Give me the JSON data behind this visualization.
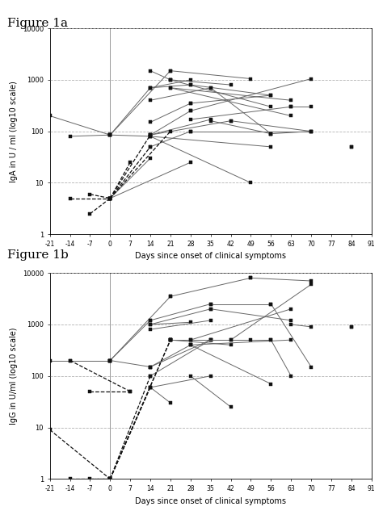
{
  "fig1a_title": "Figure 1a",
  "fig1b_title": "Figure 1b",
  "xlabel": "Days since onset of clinical symptoms",
  "ylabel_a": "IgA in U / ml (log10 scale)",
  "ylabel_b": "IgG in U/ml (log10 scale)",
  "xlim": [
    -21,
    91
  ],
  "ylim_log": [
    1,
    10000
  ],
  "xticks": [
    -21,
    -14,
    -7,
    0,
    7,
    14,
    21,
    28,
    35,
    42,
    49,
    56,
    63,
    70,
    77,
    84,
    91
  ],
  "yticks_log": [
    1,
    10,
    100,
    1000,
    10000
  ],
  "fig1a_solid_lines": [
    [
      [
        -21,
        200
      ],
      [
        0,
        85
      ]
    ],
    [
      [
        -14,
        80
      ],
      [
        0,
        85
      ]
    ],
    [
      [
        0,
        85
      ],
      [
        21,
        1500
      ]
    ],
    [
      [
        0,
        85
      ],
      [
        14,
        700
      ]
    ],
    [
      [
        0,
        85
      ],
      [
        14,
        80
      ]
    ],
    [
      [
        0,
        5
      ],
      [
        14,
        30
      ]
    ],
    [
      [
        0,
        5
      ],
      [
        28,
        25
      ]
    ],
    [
      [
        14,
        1500
      ],
      [
        21,
        1000
      ]
    ],
    [
      [
        14,
        700
      ],
      [
        28,
        1000
      ]
    ],
    [
      [
        14,
        700
      ],
      [
        28,
        800
      ]
    ],
    [
      [
        14,
        400
      ],
      [
        35,
        700
      ]
    ],
    [
      [
        14,
        150
      ],
      [
        28,
        350
      ]
    ],
    [
      [
        14,
        85
      ],
      [
        28,
        250
      ]
    ],
    [
      [
        14,
        85
      ],
      [
        35,
        170
      ]
    ],
    [
      [
        14,
        85
      ],
      [
        42,
        160
      ]
    ],
    [
      [
        14,
        80
      ],
      [
        49,
        10
      ]
    ],
    [
      [
        14,
        80
      ],
      [
        56,
        50
      ]
    ],
    [
      [
        14,
        50
      ],
      [
        28,
        100
      ]
    ],
    [
      [
        21,
        1500
      ],
      [
        49,
        1050
      ]
    ],
    [
      [
        21,
        1000
      ],
      [
        42,
        800
      ]
    ],
    [
      [
        21,
        1000
      ],
      [
        56,
        300
      ]
    ],
    [
      [
        21,
        700
      ],
      [
        63,
        400
      ]
    ],
    [
      [
        21,
        700
      ],
      [
        63,
        200
      ]
    ],
    [
      [
        28,
        800
      ],
      [
        56,
        500
      ]
    ],
    [
      [
        28,
        350
      ],
      [
        56,
        500
      ]
    ],
    [
      [
        28,
        250
      ],
      [
        70,
        1050
      ]
    ],
    [
      [
        28,
        170
      ],
      [
        63,
        300
      ]
    ],
    [
      [
        28,
        100
      ],
      [
        70,
        100
      ]
    ],
    [
      [
        35,
        700
      ],
      [
        56,
        90
      ]
    ],
    [
      [
        35,
        160
      ],
      [
        56,
        90
      ]
    ],
    [
      [
        42,
        160
      ],
      [
        70,
        100
      ]
    ],
    [
      [
        56,
        90
      ],
      [
        70,
        100
      ]
    ],
    [
      [
        63,
        300
      ],
      [
        70,
        300
      ]
    ],
    [
      [
        84,
        50
      ],
      [
        84,
        50
      ]
    ]
  ],
  "fig1a_dashed_lines": [
    [
      [
        -14,
        5
      ],
      [
        0,
        5
      ]
    ],
    [
      [
        -7,
        2.5
      ],
      [
        0,
        5
      ]
    ],
    [
      [
        -7,
        6
      ],
      [
        0,
        5
      ]
    ],
    [
      [
        0,
        5
      ],
      [
        7,
        25
      ]
    ],
    [
      [
        0,
        5
      ],
      [
        14,
        85
      ]
    ],
    [
      [
        0,
        5
      ],
      [
        14,
        50
      ]
    ],
    [
      [
        0,
        5
      ],
      [
        21,
        100
      ]
    ]
  ],
  "fig1b_solid_lines": [
    [
      [
        -21,
        200
      ],
      [
        0,
        200
      ]
    ],
    [
      [
        -14,
        200
      ],
      [
        0,
        200
      ]
    ],
    [
      [
        0,
        200
      ],
      [
        14,
        1200
      ]
    ],
    [
      [
        0,
        200
      ],
      [
        21,
        3500
      ]
    ],
    [
      [
        0,
        200
      ],
      [
        14,
        150
      ]
    ],
    [
      [
        14,
        1200
      ],
      [
        35,
        2500
      ]
    ],
    [
      [
        14,
        1000
      ],
      [
        28,
        1100
      ]
    ],
    [
      [
        14,
        1000
      ],
      [
        35,
        2000
      ]
    ],
    [
      [
        14,
        800
      ],
      [
        35,
        1200
      ]
    ],
    [
      [
        14,
        150
      ],
      [
        28,
        400
      ]
    ],
    [
      [
        14,
        150
      ],
      [
        35,
        500
      ]
    ],
    [
      [
        14,
        100
      ],
      [
        35,
        500
      ]
    ],
    [
      [
        14,
        60
      ],
      [
        21,
        30
      ]
    ],
    [
      [
        14,
        60
      ],
      [
        35,
        100
      ]
    ],
    [
      [
        21,
        3500
      ],
      [
        49,
        8000
      ]
    ],
    [
      [
        21,
        500
      ],
      [
        42,
        500
      ]
    ],
    [
      [
        21,
        500
      ],
      [
        56,
        500
      ]
    ],
    [
      [
        21,
        500
      ],
      [
        42,
        400
      ]
    ],
    [
      [
        21,
        500
      ],
      [
        35,
        500
      ]
    ],
    [
      [
        28,
        500
      ],
      [
        49,
        500
      ]
    ],
    [
      [
        28,
        500
      ],
      [
        63,
        2000
      ]
    ],
    [
      [
        28,
        400
      ],
      [
        56,
        70
      ]
    ],
    [
      [
        28,
        400
      ],
      [
        63,
        500
      ]
    ],
    [
      [
        28,
        100
      ],
      [
        42,
        25
      ]
    ],
    [
      [
        35,
        2500
      ],
      [
        56,
        2500
      ]
    ],
    [
      [
        35,
        2000
      ],
      [
        63,
        1200
      ]
    ],
    [
      [
        42,
        500
      ],
      [
        70,
        6000
      ]
    ],
    [
      [
        49,
        8000
      ],
      [
        70,
        7000
      ]
    ],
    [
      [
        56,
        2500
      ],
      [
        70,
        150
      ]
    ],
    [
      [
        56,
        500
      ],
      [
        63,
        100
      ]
    ],
    [
      [
        63,
        1000
      ],
      [
        70,
        900
      ]
    ],
    [
      [
        84,
        900
      ],
      [
        84,
        900
      ]
    ]
  ],
  "fig1b_dashed_lines": [
    [
      [
        -21,
        9
      ],
      [
        0,
        1
      ]
    ],
    [
      [
        -14,
        1
      ],
      [
        0,
        1
      ]
    ],
    [
      [
        -7,
        1
      ],
      [
        0,
        1
      ]
    ],
    [
      [
        0,
        1
      ],
      [
        14,
        60
      ]
    ],
    [
      [
        0,
        1
      ],
      [
        14,
        100
      ]
    ],
    [
      [
        0,
        1
      ],
      [
        21,
        500
      ]
    ],
    [
      [
        0,
        1
      ],
      [
        21,
        500
      ]
    ],
    [
      [
        -14,
        200
      ],
      [
        7,
        50
      ]
    ],
    [
      [
        -7,
        50
      ],
      [
        7,
        50
      ]
    ]
  ]
}
